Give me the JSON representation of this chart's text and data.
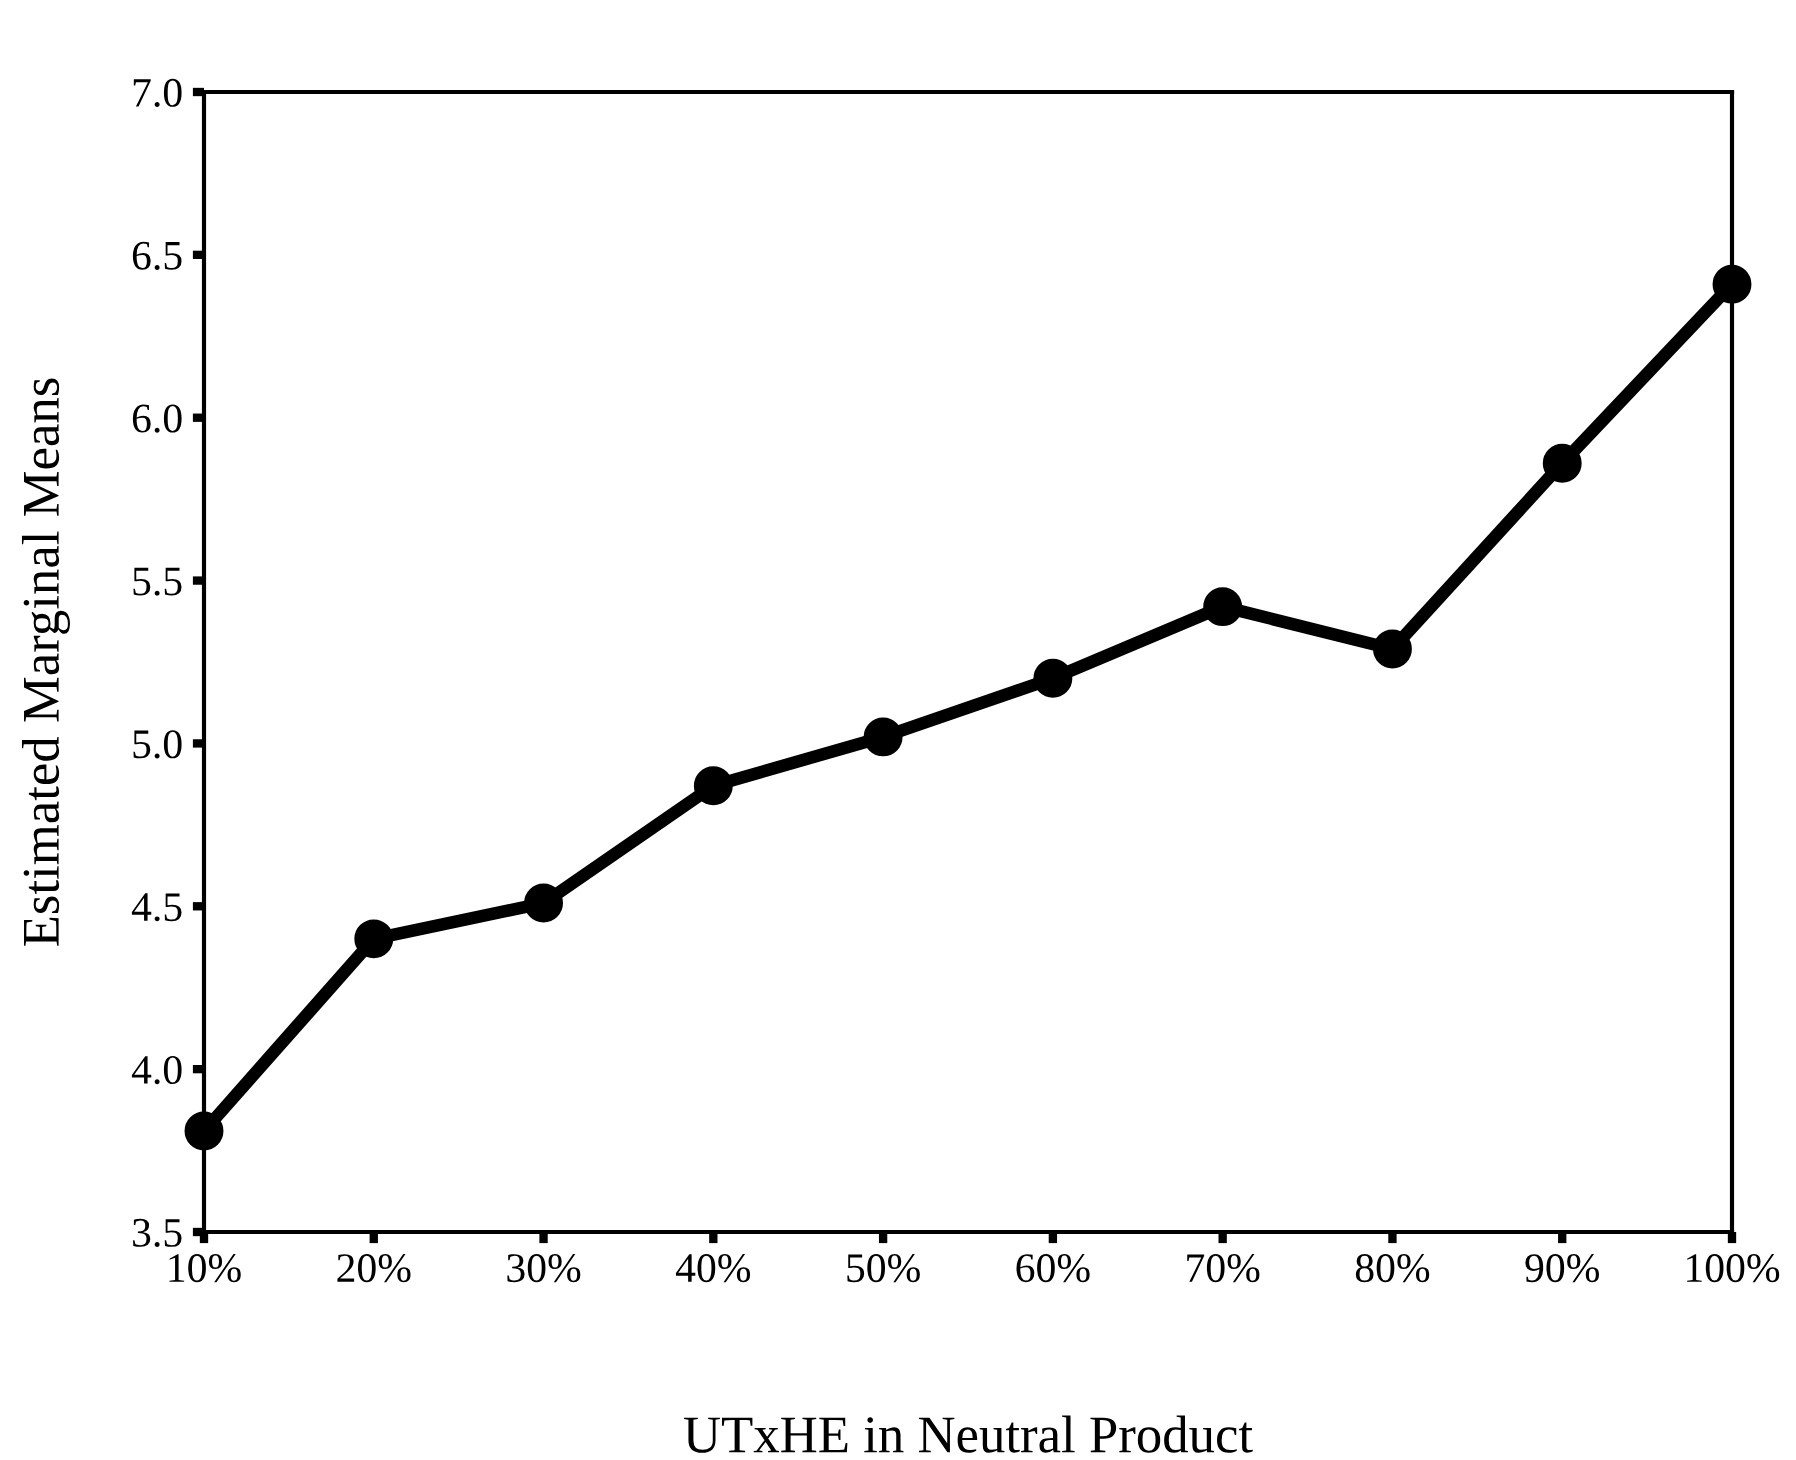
{
  "chart_data": {
    "type": "line",
    "xlabel": "UTxHE in Neutral Product",
    "ylabel": "Estimated Marginal Means",
    "categories": [
      "10%",
      "20%",
      "30%",
      "40%",
      "50%",
      "60%",
      "70%",
      "80%",
      "90%",
      "100%"
    ],
    "series": [
      {
        "color": "#000000",
        "values": [
          3.81,
          4.4,
          4.51,
          4.87,
          5.02,
          5.2,
          5.42,
          5.29,
          5.86,
          6.41
        ]
      }
    ],
    "ylim": [
      3.5,
      7.0
    ],
    "yticks": [
      {
        "value": 3.5,
        "label": "3.5"
      },
      {
        "value": 4.0,
        "label": "4.0"
      },
      {
        "value": 4.5,
        "label": "4.5"
      },
      {
        "value": 5.0,
        "label": "5.0"
      },
      {
        "value": 5.5,
        "label": "5.5"
      },
      {
        "value": 6.0,
        "label": "6.0"
      },
      {
        "value": 6.5,
        "label": "6.5"
      },
      {
        "value": 7.0,
        "label": "7.0"
      }
    ],
    "marker": "circle",
    "line_style": "solid",
    "grid": false,
    "legend": false
  }
}
